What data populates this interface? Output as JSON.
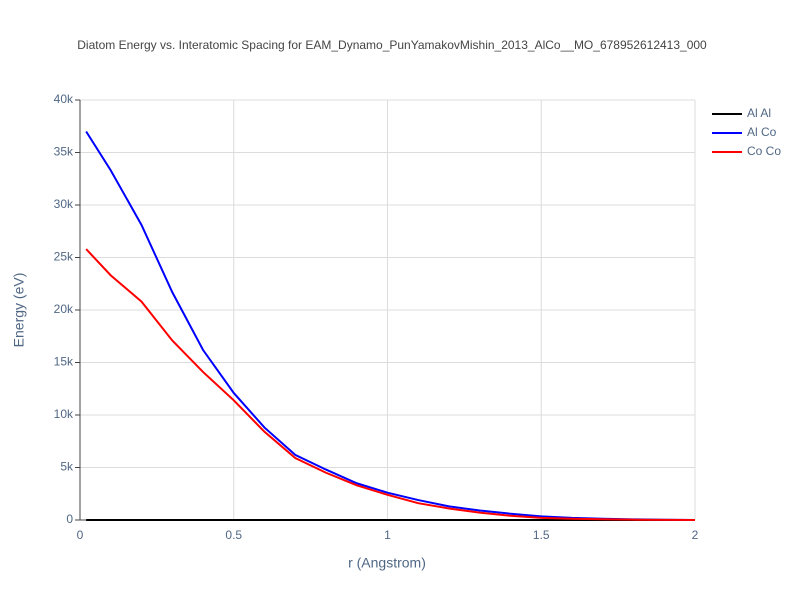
{
  "chart_data": {
    "type": "line",
    "title": "Diatom Energy vs. Interatomic Spacing for EAM_Dynamo_PunYamakovMishin_2013_AlCo__MO_678952612413_000",
    "x_label": "r (Angstrom)",
    "y_label": "Energy (eV)",
    "x": [
      0.02,
      0.1,
      0.2,
      0.3,
      0.4,
      0.5,
      0.6,
      0.7,
      0.8,
      0.9,
      1.0,
      1.1,
      1.2,
      1.3,
      1.4,
      1.5,
      1.6,
      1.7,
      1.8,
      1.9,
      2.0
    ],
    "series": [
      {
        "name": "Al Al",
        "color": "#000000",
        "values": [
          0,
          0,
          0,
          0,
          0,
          0,
          0,
          0,
          0,
          0,
          0,
          0,
          0,
          0,
          0,
          0,
          0,
          0,
          0,
          0,
          0
        ]
      },
      {
        "name": "Al Co",
        "color": "#0000ff",
        "values": [
          37000,
          33300,
          28100,
          21700,
          16200,
          12100,
          8800,
          6200,
          4800,
          3500,
          2600,
          1900,
          1300,
          900,
          600,
          350,
          200,
          120,
          60,
          20,
          0
        ]
      },
      {
        "name": "Co Co",
        "color": "#ff0000",
        "values": [
          25800,
          23300,
          20800,
          17100,
          14100,
          11400,
          8400,
          5900,
          4500,
          3300,
          2400,
          1600,
          1100,
          700,
          400,
          200,
          120,
          70,
          30,
          10,
          0
        ]
      }
    ],
    "xlim": [
      0,
      2
    ],
    "xticks": [
      0,
      0.5,
      1,
      1.5,
      2
    ],
    "ylim": [
      0,
      40000
    ],
    "yticks": [
      0,
      {
        "value": 5000,
        "label": "5k"
      },
      {
        "value": 10000,
        "label": "10k"
      },
      {
        "value": 15000,
        "label": "15k"
      },
      {
        "value": 20000,
        "label": "20k"
      },
      {
        "value": 25000,
        "label": "25k"
      },
      {
        "value": 30000,
        "label": "30k"
      },
      {
        "value": 35000,
        "label": "35k"
      },
      {
        "value": 40000,
        "label": "40k"
      }
    ],
    "grid": true,
    "legend": "top-right"
  }
}
